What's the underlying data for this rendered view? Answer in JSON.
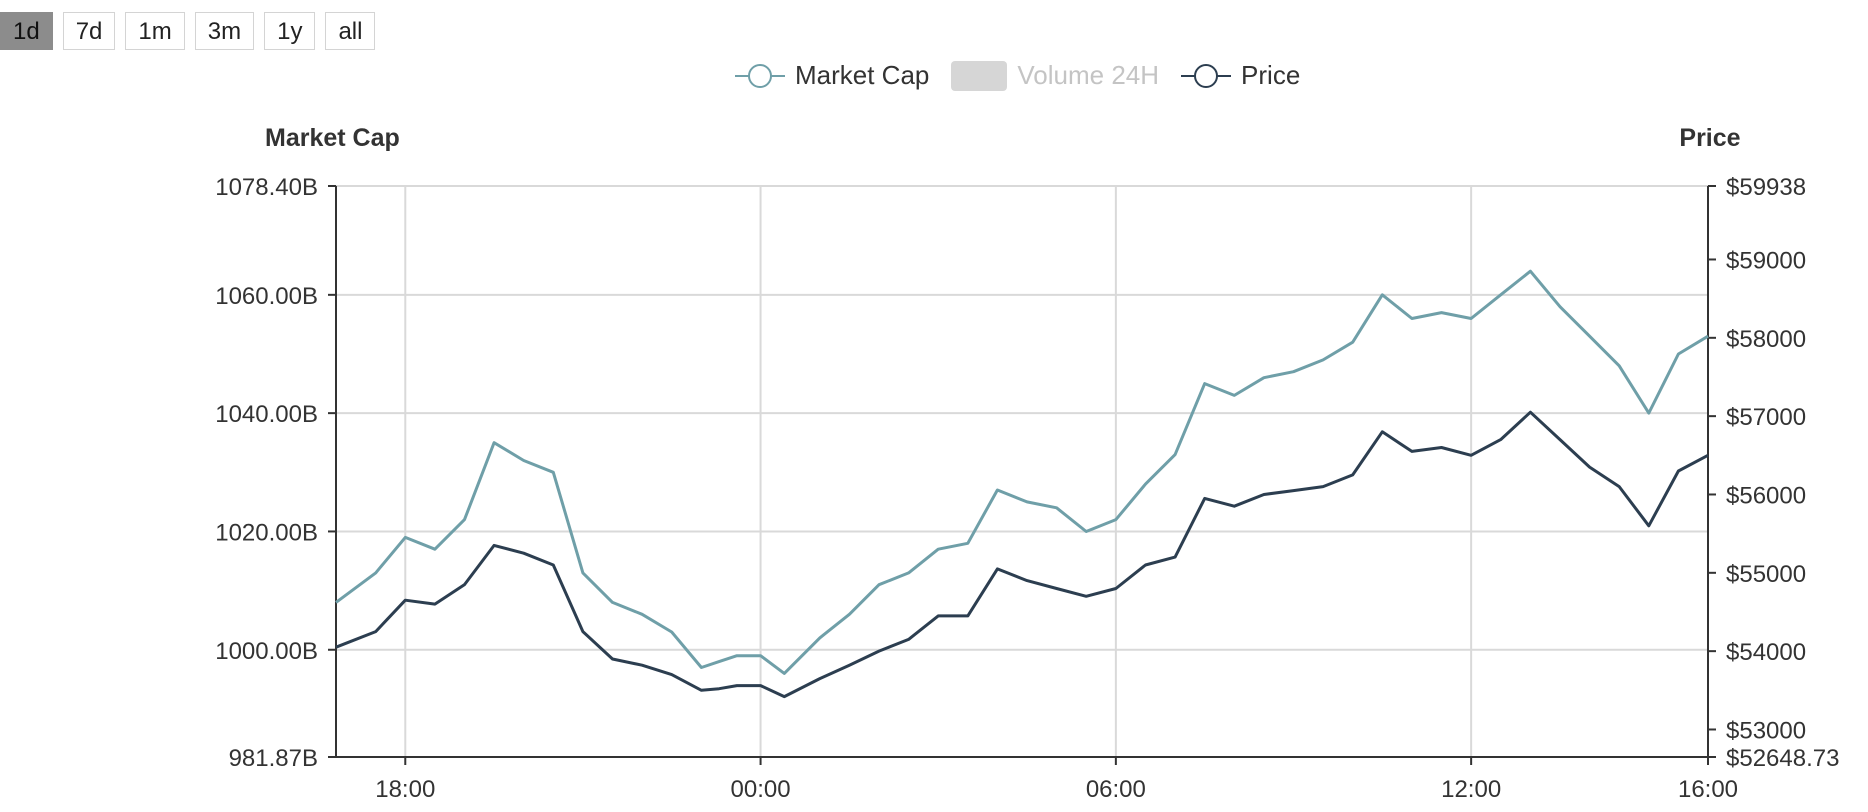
{
  "range_buttons": [
    {
      "label": "1d",
      "active": true
    },
    {
      "label": "7d",
      "active": false
    },
    {
      "label": "1m",
      "active": false
    },
    {
      "label": "3m",
      "active": false
    },
    {
      "label": "1y",
      "active": false
    },
    {
      "label": "all",
      "active": false
    }
  ],
  "legend": {
    "market_cap": "Market Cap",
    "volume": "Volume 24H",
    "price": "Price"
  },
  "colors": {
    "market_cap": "#6f9fa8",
    "price": "#2c3e50",
    "grid": "#d9d9d9",
    "axis": "#333333"
  },
  "chart_data": {
    "type": "line",
    "left_axis_title": "Market Cap",
    "right_axis_title": "Price",
    "left_ticks": [
      "1078.40B",
      "1060.00B",
      "1040.00B",
      "1020.00B",
      "1000.00B",
      "981.87B"
    ],
    "right_ticks": [
      "$59938",
      "$59000",
      "$58000",
      "$57000",
      "$56000",
      "$55000",
      "$54000",
      "$53000",
      "$52648.73"
    ],
    "x_ticks": [
      "18:00",
      "00:00",
      "06:00",
      "12:00",
      "16:00"
    ],
    "x_tick_hours": [
      18,
      24,
      30,
      36,
      40
    ],
    "x_range_hours": [
      16.83,
      40
    ],
    "left_ylim": [
      981.87,
      1078.4
    ],
    "right_ylim": [
      52648.73,
      59938
    ],
    "grid": true,
    "series": [
      {
        "name": "Market Cap",
        "axis": "left",
        "x": [
          16.83,
          17.5,
          18.0,
          18.5,
          19.0,
          19.5,
          20.0,
          20.5,
          21.0,
          21.5,
          22.0,
          22.5,
          23.0,
          23.3,
          23.6,
          24.0,
          24.4,
          25.0,
          25.5,
          26.0,
          26.5,
          27.0,
          27.5,
          28.0,
          28.5,
          29.0,
          29.5,
          30.0,
          30.5,
          31.0,
          31.5,
          32.0,
          32.5,
          33.0,
          33.5,
          34.0,
          34.5,
          35.0,
          35.5,
          36.0,
          36.5,
          37.0,
          37.5,
          38.0,
          38.5,
          39.0,
          39.5,
          40.0
        ],
        "values": [
          1008,
          1013,
          1019,
          1017,
          1022,
          1035,
          1032,
          1030,
          1013,
          1008,
          1006,
          1003,
          997,
          998,
          999,
          999,
          996,
          1002,
          1006,
          1011,
          1013,
          1017,
          1018,
          1027,
          1025,
          1024,
          1020,
          1022,
          1028,
          1033,
          1045,
          1043,
          1046,
          1047,
          1049,
          1052,
          1060,
          1056,
          1057,
          1056,
          1060,
          1064,
          1058,
          1053,
          1048,
          1040,
          1050,
          1053
        ]
      },
      {
        "name": "Price",
        "axis": "right",
        "x": [
          16.83,
          17.5,
          18.0,
          18.5,
          19.0,
          19.5,
          20.0,
          20.5,
          21.0,
          21.5,
          22.0,
          22.5,
          23.0,
          23.3,
          23.6,
          24.0,
          24.4,
          25.0,
          25.5,
          26.0,
          26.5,
          27.0,
          27.5,
          28.0,
          28.5,
          29.0,
          29.5,
          30.0,
          30.5,
          31.0,
          31.5,
          32.0,
          32.5,
          33.0,
          33.5,
          34.0,
          34.5,
          35.0,
          35.5,
          36.0,
          36.5,
          37.0,
          37.5,
          38.0,
          38.5,
          39.0,
          39.5,
          40.0
        ],
        "values": [
          54050,
          54250,
          54650,
          54600,
          54850,
          55350,
          55250,
          55100,
          54250,
          53900,
          53820,
          53700,
          53500,
          53520,
          53560,
          53560,
          53420,
          53650,
          53820,
          54000,
          54150,
          54450,
          54450,
          55050,
          54900,
          54800,
          54700,
          54800,
          55100,
          55200,
          55950,
          55850,
          56000,
          56050,
          56100,
          56250,
          56800,
          56550,
          56600,
          56500,
          56700,
          57050,
          56700,
          56350,
          56100,
          55600,
          56300,
          56500
        ]
      }
    ]
  }
}
